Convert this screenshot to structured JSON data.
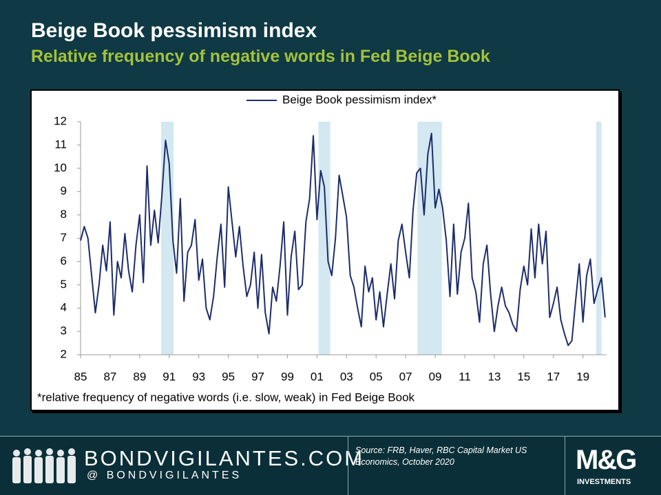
{
  "chart_data": {
    "type": "line",
    "title": "Beige Book pessimism index",
    "subtitle": "Relative frequency of negative words in Fed Beige Book",
    "footnote": "*relative frequency of negative words (i.e. slow, weak) in Fed Beige Book",
    "legend": "top",
    "xlim": [
      1985,
      2020.6
    ],
    "ylim": [
      2,
      12
    ],
    "yticks": [
      2,
      3,
      4,
      5,
      6,
      7,
      8,
      9,
      10,
      11,
      12
    ],
    "xticks": [
      {
        "value": 1985,
        "label": "85"
      },
      {
        "value": 1987,
        "label": "87"
      },
      {
        "value": 1989,
        "label": "89"
      },
      {
        "value": 1991,
        "label": "91"
      },
      {
        "value": 1993,
        "label": "93"
      },
      {
        "value": 1995,
        "label": "95"
      },
      {
        "value": 1997,
        "label": "97"
      },
      {
        "value": 1999,
        "label": "99"
      },
      {
        "value": 2001,
        "label": "01"
      },
      {
        "value": 2003,
        "label": "03"
      },
      {
        "value": 2005,
        "label": "05"
      },
      {
        "value": 2007,
        "label": "07"
      },
      {
        "value": 2009,
        "label": "09"
      },
      {
        "value": 2011,
        "label": "11"
      },
      {
        "value": 2013,
        "label": "13"
      },
      {
        "value": 2015,
        "label": "15"
      },
      {
        "value": 2017,
        "label": "17"
      },
      {
        "value": 2019,
        "label": "19"
      }
    ],
    "recessions": [
      [
        1990.45,
        1991.3
      ],
      [
        2001.1,
        2001.9
      ],
      [
        2007.8,
        2009.45
      ],
      [
        2019.9,
        2020.25
      ]
    ],
    "recession_color": "#d3e8f0",
    "x": [
      1985,
      1985.25,
      1985.5,
      1985.75,
      1986,
      1986.25,
      1986.5,
      1986.75,
      1987,
      1987.25,
      1987.5,
      1987.75,
      1988,
      1988.25,
      1988.5,
      1988.75,
      1989,
      1989.25,
      1989.5,
      1989.75,
      1990,
      1990.25,
      1990.5,
      1990.75,
      1991,
      1991.25,
      1991.5,
      1991.75,
      1992,
      1992.25,
      1992.5,
      1992.75,
      1993,
      1993.25,
      1993.5,
      1993.75,
      1994,
      1994.25,
      1994.5,
      1994.75,
      1995,
      1995.25,
      1995.5,
      1995.75,
      1996,
      1996.25,
      1996.5,
      1996.75,
      1997,
      1997.25,
      1997.5,
      1997.75,
      1998,
      1998.25,
      1998.5,
      1998.75,
      1999,
      1999.25,
      1999.5,
      1999.75,
      2000,
      2000.25,
      2000.5,
      2000.75,
      2001,
      2001.25,
      2001.5,
      2001.75,
      2002,
      2002.25,
      2002.5,
      2002.75,
      2003,
      2003.25,
      2003.5,
      2003.75,
      2004,
      2004.25,
      2004.5,
      2004.75,
      2005,
      2005.25,
      2005.5,
      2005.75,
      2006,
      2006.25,
      2006.5,
      2006.75,
      2007,
      2007.25,
      2007.5,
      2007.75,
      2008,
      2008.25,
      2008.5,
      2008.75,
      2009,
      2009.25,
      2009.5,
      2009.75,
      2010,
      2010.25,
      2010.5,
      2010.75,
      2011,
      2011.25,
      2011.5,
      2011.75,
      2012,
      2012.25,
      2012.5,
      2012.75,
      2013,
      2013.25,
      2013.5,
      2013.75,
      2014,
      2014.25,
      2014.5,
      2014.75,
      2015,
      2015.25,
      2015.5,
      2015.75,
      2016,
      2016.25,
      2016.5,
      2016.75,
      2017,
      2017.25,
      2017.5,
      2017.75,
      2018,
      2018.25,
      2018.5,
      2018.75,
      2019,
      2019.25,
      2019.5,
      2019.75,
      2020,
      2020.25,
      2020.5
    ],
    "series": [
      {
        "name": "Beige Book pessimism index*",
        "color": "#1c2c6b",
        "values": [
          6.9,
          7.5,
          7.0,
          5.4,
          3.8,
          5.0,
          6.7,
          5.6,
          7.7,
          3.7,
          6.0,
          5.3,
          7.2,
          5.6,
          4.7,
          6.7,
          8.0,
          5.1,
          10.1,
          6.7,
          8.2,
          6.8,
          8.8,
          11.2,
          10.2,
          6.9,
          5.5,
          8.7,
          4.3,
          6.4,
          6.7,
          7.8,
          5.2,
          6.1,
          4.0,
          3.5,
          4.5,
          6.2,
          7.6,
          4.9,
          9.2,
          7.7,
          6.2,
          7.5,
          5.8,
          4.5,
          5.0,
          6.4,
          4.0,
          6.3,
          3.8,
          2.9,
          4.9,
          4.3,
          5.8,
          7.7,
          3.7,
          6.2,
          7.3,
          4.8,
          5.0,
          7.7,
          8.7,
          11.4,
          7.8,
          9.9,
          9.2,
          6.0,
          5.4,
          7.0,
          9.7,
          8.8,
          7.9,
          5.4,
          4.9,
          4.0,
          3.2,
          5.8,
          4.7,
          5.3,
          3.5,
          4.7,
          3.2,
          4.6,
          5.9,
          4.4,
          6.9,
          7.6,
          6.4,
          5.3,
          8.2,
          9.8,
          10.0,
          8.0,
          10.6,
          11.5,
          8.3,
          9.1,
          8.3,
          6.9,
          4.5,
          7.6,
          4.6,
          6.4,
          7.0,
          8.5,
          5.3,
          4.7,
          3.4,
          5.9,
          6.7,
          4.6,
          3.0,
          4.1,
          4.9,
          4.1,
          3.8,
          3.3,
          3.0,
          4.8,
          5.8,
          5.0,
          7.4,
          5.3,
          7.6,
          5.9,
          7.3,
          3.6,
          4.2,
          4.9,
          3.5,
          2.9,
          2.4,
          2.6,
          4.3,
          5.9,
          3.4,
          5.4,
          6.1,
          4.2,
          4.8,
          5.3,
          3.6
        ]
      }
    ]
  },
  "footer": {
    "brand": "BONDVIGILANTES.COM",
    "handle": "@ BONDVIGILANTES",
    "source": "Source: FRB, Haver, RBC Capital Market US Economics, October 2020",
    "logo": "M&G",
    "logo_sub": "INVESTMENTS"
  }
}
